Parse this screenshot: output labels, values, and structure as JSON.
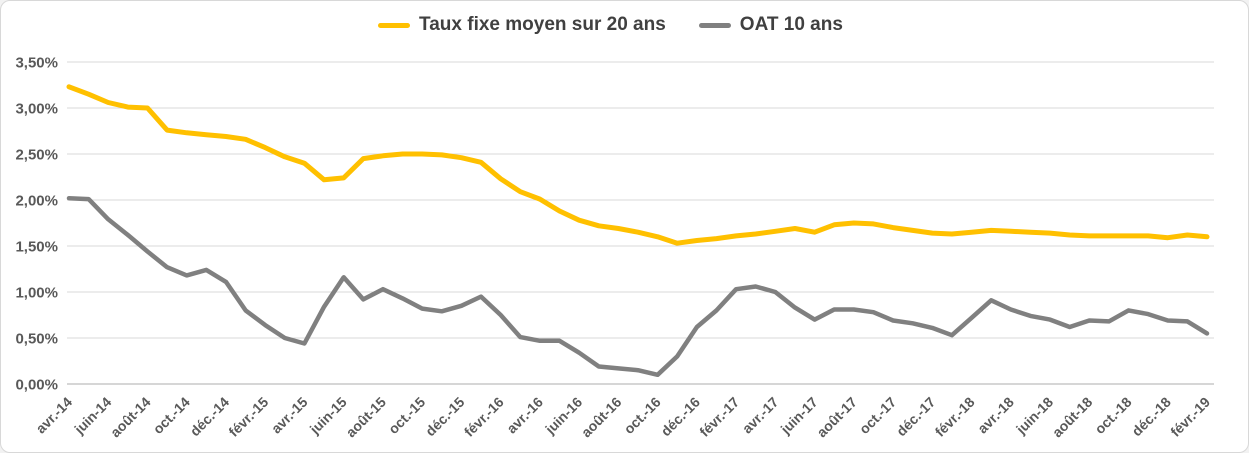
{
  "legend": {
    "items": [
      {
        "label": "Taux fixe moyen sur 20 ans",
        "color": "#FFC000"
      },
      {
        "label": "OAT 10 ans",
        "color": "#808080"
      }
    ],
    "position": "top-center"
  },
  "chart_data": {
    "type": "line",
    "title": "",
    "xlabel": "",
    "ylabel": "",
    "ylim": [
      0,
      3.5
    ],
    "grid": "horizontal",
    "background": "#ffffff",
    "gridline_color": "#d9d9d9",
    "axis_line_color": "#c8c8c8",
    "tick_label_color": "#595959",
    "y_ticks": [
      0,
      0.5,
      1,
      1.5,
      2,
      2.5,
      3,
      3.5
    ],
    "y_tick_labels": [
      "0,00%",
      "0,50%",
      "1,00%",
      "1,50%",
      "2,00%",
      "2,50%",
      "3,00%",
      "3,50%"
    ],
    "x_label_every": 2,
    "x": [
      "avr.-14",
      "mai-14",
      "juin-14",
      "juil.-14",
      "août-14",
      "sept.-14",
      "oct.-14",
      "nov.-14",
      "déc.-14",
      "janv.-15",
      "févr.-15",
      "mars-15",
      "avr.-15",
      "mai-15",
      "juin-15",
      "juil.-15",
      "août-15",
      "sept.-15",
      "oct.-15",
      "nov.-15",
      "déc.-15",
      "janv.-16",
      "févr.-16",
      "mars-16",
      "avr.-16",
      "mai-16",
      "juin-16",
      "juil.-16",
      "août-16",
      "sept.-16",
      "oct.-16",
      "nov.-16",
      "déc.-16",
      "janv.-17",
      "févr.-17",
      "mars-17",
      "avr.-17",
      "mai-17",
      "juin-17",
      "juil.-17",
      "août-17",
      "sept.-17",
      "oct.-17",
      "nov.-17",
      "déc.-17",
      "janv.-18",
      "févr.-18",
      "mars-18",
      "avr.-18",
      "mai-18",
      "juin-18",
      "juil.-18",
      "août-18",
      "sept.-18",
      "oct.-18",
      "nov.-18",
      "déc.-18",
      "janv.-19",
      "févr.-19"
    ],
    "series": [
      {
        "name": "Taux fixe moyen sur 20 ans",
        "color": "#FFC000",
        "line_width": 5,
        "values": [
          3.23,
          3.15,
          3.06,
          3.01,
          3.0,
          2.76,
          2.73,
          2.71,
          2.69,
          2.66,
          2.57,
          2.47,
          2.4,
          2.22,
          2.24,
          2.45,
          2.48,
          2.5,
          2.5,
          2.49,
          2.46,
          2.41,
          2.23,
          2.09,
          2.01,
          1.88,
          1.78,
          1.72,
          1.69,
          1.65,
          1.6,
          1.53,
          1.56,
          1.58,
          1.61,
          1.63,
          1.66,
          1.69,
          1.65,
          1.73,
          1.75,
          1.74,
          1.7,
          1.67,
          1.64,
          1.63,
          1.65,
          1.67,
          1.66,
          1.65,
          1.64,
          1.62,
          1.61,
          1.61,
          1.61,
          1.61,
          1.59,
          1.62,
          1.6
        ]
      },
      {
        "name": "OAT 10 ans",
        "color": "#808080",
        "line_width": 4.5,
        "values": [
          2.02,
          2.01,
          1.79,
          1.62,
          1.44,
          1.27,
          1.18,
          1.24,
          1.11,
          0.8,
          0.64,
          0.5,
          0.44,
          0.84,
          1.16,
          0.92,
          1.03,
          0.93,
          0.82,
          0.79,
          0.85,
          0.95,
          0.75,
          0.51,
          0.47,
          0.47,
          0.34,
          0.19,
          0.17,
          0.15,
          0.1,
          0.3,
          0.62,
          0.8,
          1.03,
          1.06,
          1.0,
          0.83,
          0.7,
          0.81,
          0.81,
          0.78,
          0.69,
          0.66,
          0.61,
          0.53,
          0.72,
          0.91,
          0.81,
          0.74,
          0.7,
          0.62,
          0.69,
          0.68,
          0.8,
          0.76,
          0.69,
          0.68,
          0.55
        ]
      }
    ]
  }
}
